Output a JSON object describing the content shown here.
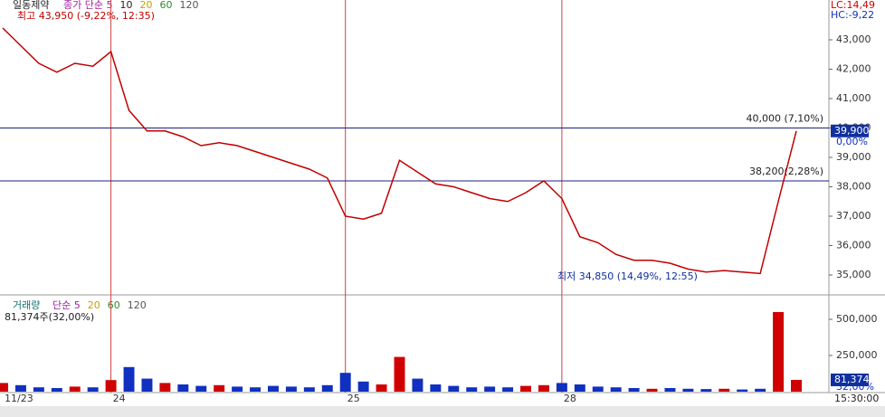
{
  "chart_data": {
    "type": "line",
    "title": "일동제약",
    "legend": [
      "종가 단순 5",
      "10",
      "20",
      "60",
      "120"
    ],
    "legend_colors": [
      "#a020a0",
      "#222222",
      "#c9a000",
      "#2e8b2e",
      "#555555"
    ],
    "categories": [
      "11/23",
      null,
      null,
      null,
      null,
      null,
      "24",
      null,
      null,
      null,
      null,
      null,
      null,
      null,
      null,
      null,
      null,
      null,
      null,
      "25",
      null,
      null,
      null,
      null,
      null,
      null,
      null,
      null,
      null,
      null,
      null,
      "28",
      null,
      null,
      null,
      null,
      null,
      null,
      null,
      null,
      null,
      null,
      null,
      null,
      null
    ],
    "values": [
      43400,
      42800,
      42200,
      41900,
      42200,
      42100,
      42600,
      40600,
      39900,
      39900,
      39700,
      39400,
      39500,
      39400,
      39200,
      39000,
      38800,
      38600,
      38300,
      37000,
      36900,
      37100,
      38900,
      38500,
      38100,
      38000,
      37800,
      37600,
      37500,
      37800,
      38200,
      37600,
      36300,
      36100,
      35700,
      35500,
      35500,
      35400,
      35200,
      35100,
      35150,
      35100,
      35050,
      37500,
      39900
    ],
    "color": "#c00000",
    "ylim": [
      34354,
      44354
    ],
    "yticks": [
      {
        "value": 35000,
        "label": "35,000"
      },
      {
        "value": 36000,
        "label": "36,000"
      },
      {
        "value": 37000,
        "label": "37,000"
      },
      {
        "value": 38000,
        "label": "38,000"
      },
      {
        "value": 39000,
        "label": "39,000"
      },
      {
        "value": 40000,
        "label": "40,000"
      },
      {
        "value": 41000,
        "label": "41,000"
      },
      {
        "value": 42000,
        "label": "42,000"
      },
      {
        "value": 43000,
        "label": "43,000"
      }
    ],
    "high_note": "최고 43,950 (-9,22%, 12:35)",
    "low_note": "최저 34,850 (14,49%, 12:55)",
    "levels": [
      {
        "value": 40000,
        "label": "40,000 (7,10%)"
      },
      {
        "value": 38200,
        "label": "38,200(2,28%)"
      }
    ],
    "last_price": {
      "value": 39900,
      "label": "39,900"
    },
    "last_change": "0,00%",
    "lc": "LC:14,49",
    "hc": "HC:-9,22",
    "volume": {
      "title": "거래량",
      "legend": [
        "단순 5",
        "20",
        "60",
        "120"
      ],
      "legend_colors": [
        "#a020a0",
        "#c9a000",
        "#2e8b2e",
        "#555555"
      ],
      "summary": "81,374주(32,00%)",
      "values": [
        60000,
        45000,
        30000,
        25000,
        35000,
        30000,
        80000,
        170000,
        90000,
        60000,
        50000,
        40000,
        45000,
        35000,
        30000,
        40000,
        35000,
        30000,
        45000,
        130000,
        70000,
        50000,
        240000,
        90000,
        50000,
        40000,
        30000,
        35000,
        30000,
        40000,
        45000,
        60000,
        50000,
        35000,
        30000,
        25000,
        20000,
        25000,
        20000,
        18000,
        20000,
        15000,
        20000,
        550000,
        81374
      ],
      "up_color": "#d00000",
      "down_color": "#1030c0",
      "ylim": [
        0,
        656000
      ],
      "yticks": [
        {
          "value": 250000,
          "label": "250,000"
        },
        {
          "value": 500000,
          "label": "500,000"
        }
      ],
      "last": {
        "value": 81374,
        "label": "81,374"
      },
      "last_pct": "32,00%"
    },
    "time": "15:30:00"
  }
}
